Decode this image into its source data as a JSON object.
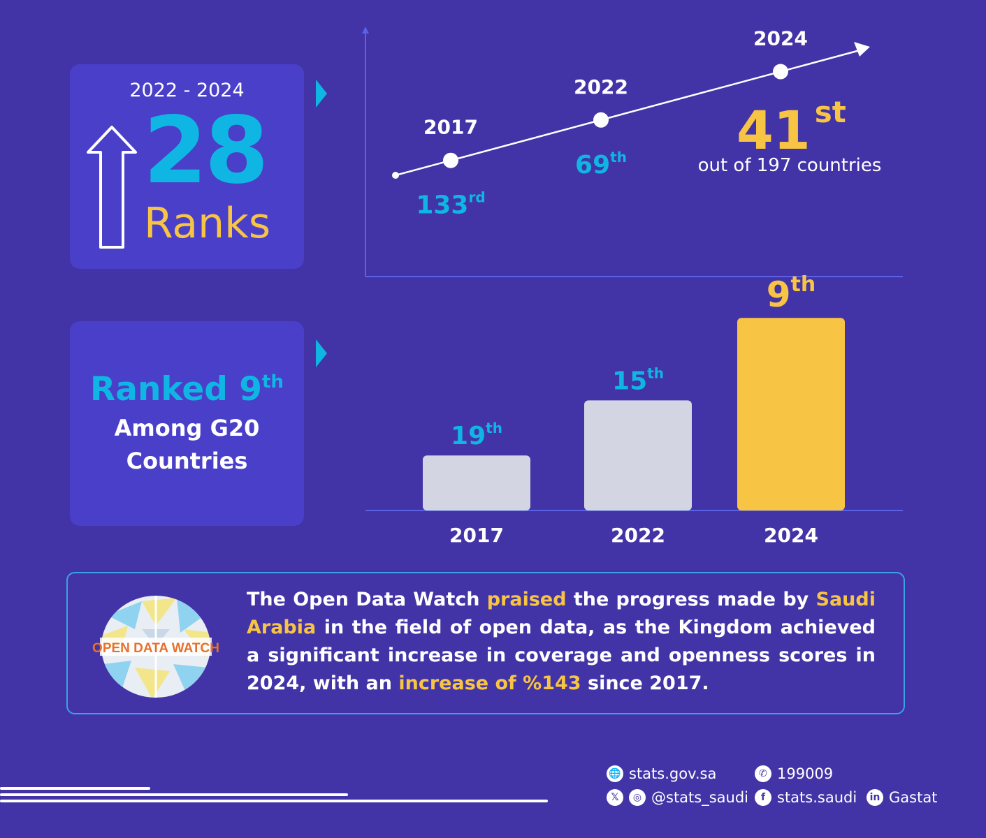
{
  "ranks_card": {
    "period": "2022 - 2024",
    "number": "28",
    "word": "Ranks"
  },
  "g20_card": {
    "rank": "Ranked 9",
    "rank_suffix": "th",
    "line1": "Among G20",
    "line2": "Countries"
  },
  "best_rank": {
    "number": "41",
    "suffix": "st",
    "note": "out of 197 countries"
  },
  "chart_data": [
    {
      "type": "line",
      "title": "",
      "xlabel": "",
      "ylabel": "",
      "grid": false,
      "points": [
        {
          "year": "2017",
          "rank": 133,
          "label": "133",
          "suffix": "rd"
        },
        {
          "year": "2022",
          "rank": 69,
          "label": "69",
          "suffix": "th"
        },
        {
          "year": "2024",
          "rank": 41,
          "label": "41",
          "suffix": "st"
        }
      ],
      "rank_out_of": 197
    },
    {
      "type": "bar",
      "title": "",
      "categories": [
        "2017",
        "2022",
        "2024"
      ],
      "values": [
        19,
        15,
        9
      ],
      "labels": [
        "19",
        "15",
        "9"
      ],
      "suffix": "th",
      "highlight_color": "#f8c443",
      "bar_color": "#d3d6e2",
      "label_color": "#10b6e3"
    }
  ],
  "info": {
    "p1": "The Open Data Watch ",
    "h1": "praised",
    "p2": " the progress made by ",
    "h2": "Saudi Arabia",
    "p3": " in the field of open data, as the Kingdom achieved a significant increase in coverage and openness scores in 2024, with an ",
    "h3": "increase of %143",
    "p4": " since 2017.",
    "logo_text": "OPEN DATA WATCH"
  },
  "contacts": {
    "website": "stats.gov.sa",
    "phone": "199009",
    "social_handle": "@stats_saudi",
    "facebook": "stats.saudi",
    "linkedin": "Gastat"
  },
  "colors": {
    "background": "#4234a6",
    "card": "#4a3fc8",
    "cyan": "#10b6e3",
    "gold": "#f8c443"
  }
}
